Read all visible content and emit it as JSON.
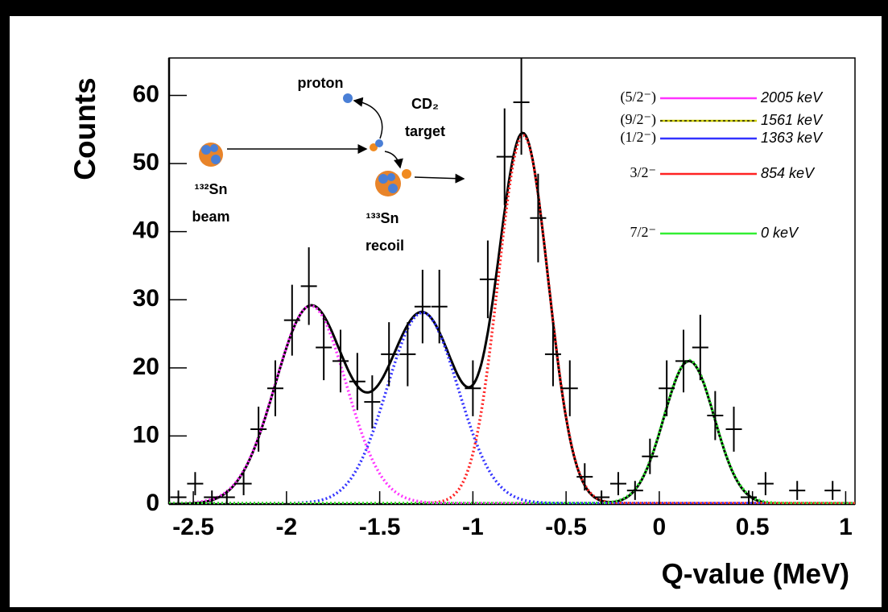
{
  "chart_data": {
    "type": "errorbar",
    "x_label": "Q-value (MeV)",
    "y_label": "Counts",
    "xlim": [
      -2.63,
      1.05
    ],
    "ylim": [
      0,
      65.5
    ],
    "xticks": [
      -2.5,
      -2,
      -1.5,
      -1,
      -0.5,
      0,
      0.5,
      1
    ],
    "yticks": [
      0,
      10,
      20,
      30,
      40,
      50,
      60
    ],
    "data": {
      "color": "#000000",
      "x": [
        -2.58,
        -2.49,
        -2.4,
        -2.32,
        -2.23,
        -2.15,
        -2.06,
        -1.97,
        -1.88,
        -1.8,
        -1.71,
        -1.62,
        -1.54,
        -1.45,
        -1.35,
        -1.27,
        -1.18,
        -1.0,
        -0.92,
        -0.83,
        -0.74,
        -0.65,
        -0.57,
        -0.48,
        -0.4,
        -0.31,
        -0.22,
        -0.13,
        -0.05,
        0.04,
        0.13,
        0.22,
        0.3,
        0.4,
        0.48,
        0.57,
        0.74,
        0.93
      ],
      "values": [
        1,
        3,
        1,
        1,
        3,
        11,
        17,
        27,
        32,
        23,
        21,
        18,
        15,
        22,
        22,
        29,
        29,
        17,
        33,
        51,
        59,
        42,
        22,
        17,
        4,
        1,
        3,
        2,
        7,
        17,
        21,
        23,
        13,
        11,
        1,
        3,
        2,
        2
      ],
      "errors": [
        1,
        1.7,
        1,
        1,
        1.7,
        3.3,
        4.1,
        5.2,
        5.7,
        4.8,
        4.6,
        4.2,
        3.9,
        4.7,
        4.7,
        5.4,
        5.4,
        4.1,
        5.7,
        7.1,
        7.7,
        6.5,
        4.7,
        4.1,
        2,
        1,
        1.7,
        1.4,
        2.6,
        4.1,
        4.6,
        4.8,
        3.6,
        3.3,
        1,
        1.7,
        1.4,
        1.4
      ]
    },
    "fits": [
      {
        "spin": "(5/2⁻)",
        "energy": "2005 keV",
        "color": "#ff33ff",
        "center": -1.87,
        "amplitude": 29,
        "sigma": 0.19
      },
      {
        "spin": "(9/2⁻)",
        "energy": "1561 keV",
        "color": "#cccc00",
        "center": -1.45,
        "amplitude": 0,
        "sigma": 0.13
      },
      {
        "spin": "(1/2⁻)",
        "energy": "1363 keV",
        "color": "#3333ff",
        "center": -1.27,
        "amplitude": 28,
        "sigma": 0.19
      },
      {
        "spin": "3/2⁻",
        "energy": "854 keV",
        "color": "#ff2222",
        "center": -0.73,
        "amplitude": 54,
        "sigma": 0.135
      },
      {
        "spin": "7/2⁻",
        "energy": "0 keV",
        "color": "#33ee33",
        "center": 0.16,
        "amplitude": 21,
        "sigma": 0.135
      }
    ],
    "total_fit_color": "#000000",
    "annotations": {
      "proton": "proton",
      "cd2": "CD₂",
      "target": "target",
      "beam_nucleus": "¹³²Sn",
      "beam": "beam",
      "recoil_nucleus": "¹³³Sn",
      "recoil": "recoil"
    }
  }
}
